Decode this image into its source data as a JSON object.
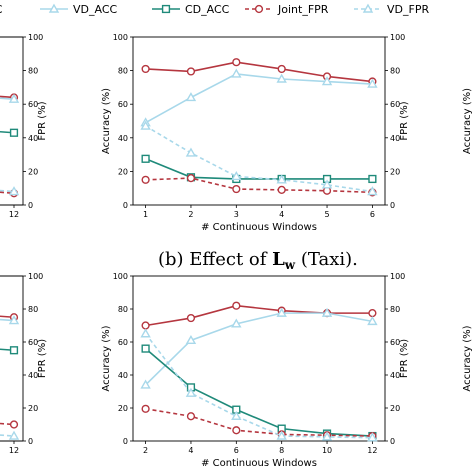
{
  "legend": {
    "items": [
      {
        "label": "Joint_ACC",
        "shown": "nt_ACC",
        "color": "#b5363f",
        "marker": "circle",
        "dashed": false
      },
      {
        "label": "VD_ACC",
        "color": "#a8d8ea",
        "marker": "triangle",
        "dashed": false
      },
      {
        "label": "CD_ACC",
        "color": "#1f8a7a",
        "marker": "square",
        "dashed": false
      },
      {
        "label": "Joint_FPR",
        "color": "#b5363f",
        "marker": "circle",
        "dashed": true
      },
      {
        "label": "VD_FPR",
        "color": "#a8d8ea",
        "marker": "triangle",
        "dashed": true
      }
    ]
  },
  "caption_top": {
    "prefix": "(b) Effect of ",
    "math": "L",
    "sub": "w",
    "suffix": " (Taxi)."
  },
  "chart_data": [
    {
      "type": "line",
      "xlabel": "# Continuous Windows",
      "ylabel_left": "Accuracy (%)",
      "ylabel_right": "FPR (%)",
      "x": [
        1,
        2,
        3,
        4,
        5,
        6
      ],
      "xticks": [
        "1",
        "2",
        "3",
        "4",
        "5",
        "6"
      ],
      "ylim": [
        0,
        100
      ],
      "y2lim": [
        0,
        100
      ],
      "yticks": [
        "0",
        "20",
        "40",
        "60",
        "80",
        "100"
      ],
      "series": [
        {
          "name": "Joint_ACC",
          "values": [
            81,
            79.5,
            85,
            81,
            76.5,
            73.5
          ]
        },
        {
          "name": "VD_ACC",
          "values": [
            49,
            64,
            78,
            75,
            73.5,
            72
          ]
        },
        {
          "name": "CD_ACC",
          "values": [
            27.5,
            16.5,
            15.5,
            15.5,
            15.5,
            15.5
          ]
        },
        {
          "name": "Joint_FPR",
          "values": [
            15,
            16,
            9.5,
            9,
            8.5,
            7.5
          ]
        },
        {
          "name": "VD_FPR",
          "values": [
            47,
            31,
            17,
            15,
            12,
            8
          ]
        }
      ]
    },
    {
      "type": "line",
      "xlabel": "# Continuous Windows",
      "ylabel_left": "Accuracy (%)",
      "ylabel_right": "FPR (%)",
      "x": [
        2,
        4,
        6,
        8,
        10,
        12
      ],
      "xticks": [
        "2",
        "4",
        "6",
        "8",
        "10",
        "12"
      ],
      "ylim": [
        0,
        100
      ],
      "y2lim": [
        0,
        100
      ],
      "yticks": [
        "0",
        "20",
        "40",
        "60",
        "80",
        "100"
      ],
      "series": [
        {
          "name": "Joint_ACC",
          "values": [
            70,
            74.5,
            82,
            79,
            77.5,
            77.5
          ]
        },
        {
          "name": "VD_ACC",
          "values": [
            34,
            61,
            71,
            77.5,
            77.5,
            72.5
          ]
        },
        {
          "name": "CD_ACC",
          "values": [
            56,
            32.5,
            19,
            7.5,
            4.5,
            3
          ]
        },
        {
          "name": "Joint_FPR",
          "values": [
            19.5,
            15,
            6.5,
            4,
            3.5,
            3
          ]
        },
        {
          "name": "VD_FPR",
          "values": [
            65,
            29,
            15,
            3,
            2.5,
            2
          ]
        }
      ]
    },
    {
      "type": "line",
      "partial": true,
      "ylabel_right": "FPR (%)",
      "xticks": [
        "12"
      ],
      "ylim": [
        0,
        100
      ],
      "yticks": [
        "0",
        "20",
        "40",
        "60",
        "80",
        "100"
      ],
      "series": [
        {
          "name": "Joint_ACC",
          "values_visible": [
            64
          ]
        },
        {
          "name": "VD_ACC",
          "values_visible": [
            63
          ]
        },
        {
          "name": "CD_ACC",
          "values_visible": [
            43
          ]
        },
        {
          "name": "Joint_FPR",
          "values_visible": [
            7
          ]
        },
        {
          "name": "VD_FPR",
          "values_visible": [
            8
          ]
        }
      ]
    },
    {
      "type": "line",
      "partial": true,
      "ylabel_right": "FPR (%)",
      "xticks": [
        "12"
      ],
      "ylim": [
        0,
        100
      ],
      "yticks": [
        "0",
        "20",
        "40",
        "60",
        "80",
        "100"
      ],
      "series": [
        {
          "name": "Joint_ACC",
          "values_visible": [
            75
          ]
        },
        {
          "name": "VD_ACC",
          "values_visible": [
            73
          ]
        },
        {
          "name": "CD_ACC",
          "values_visible": [
            55
          ]
        },
        {
          "name": "Joint_FPR",
          "values_visible": [
            10
          ]
        },
        {
          "name": "VD_FPR",
          "values_visible": [
            3
          ]
        }
      ]
    },
    {
      "type": "line",
      "partial": true,
      "ylabel_left": "Accuracy (%)",
      "note": "right-edge panels, only left axis label visible"
    }
  ]
}
